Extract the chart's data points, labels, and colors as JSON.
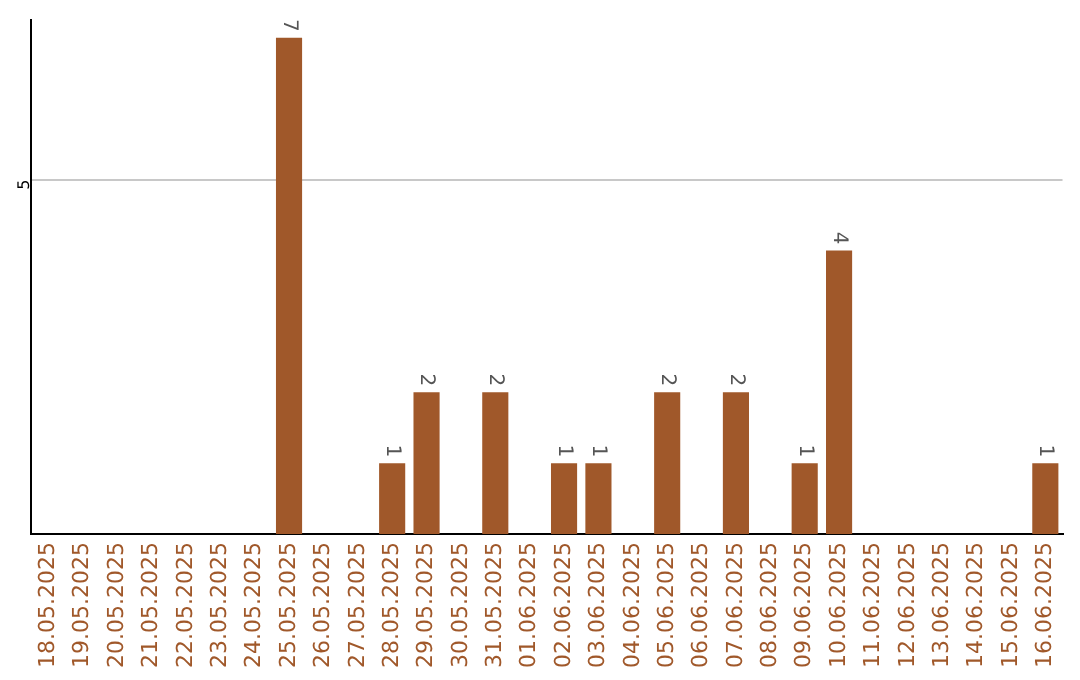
{
  "chart_data": {
    "type": "bar",
    "categories": [
      "18.05.2025",
      "19.05.2025",
      "20.05.2025",
      "21.05.2025",
      "22.05.2025",
      "23.05.2025",
      "24.05.2025",
      "25.05.2025",
      "26.05.2025",
      "27.05.2025",
      "28.05.2025",
      "29.05.2025",
      "30.05.2025",
      "31.05.2025",
      "01.06.2025",
      "02.06.2025",
      "03.06.2025",
      "04.06.2025",
      "05.06.2025",
      "06.06.2025",
      "07.06.2025",
      "08.06.2025",
      "09.06.2025",
      "10.06.2025",
      "11.06.2025",
      "12.06.2025",
      "13.06.2025",
      "14.06.2025",
      "15.06.2025",
      "16.06.2025"
    ],
    "values": [
      0,
      0,
      0,
      0,
      0,
      0,
      0,
      7,
      0,
      0,
      1,
      2,
      0,
      2,
      0,
      1,
      1,
      0,
      2,
      0,
      2,
      0,
      1,
      4,
      0,
      0,
      0,
      0,
      0,
      1
    ],
    "value_labels": [
      null,
      null,
      null,
      null,
      null,
      null,
      null,
      "7",
      null,
      null,
      "1",
      "2",
      null,
      "2",
      null,
      "1",
      "1",
      null,
      "2",
      null,
      "2",
      null,
      "1",
      "4",
      null,
      null,
      null,
      null,
      null,
      "1"
    ],
    "color": "#a0582a",
    "ylim": [
      0,
      7.25
    ],
    "yticks": [
      5
    ],
    "grid": "y",
    "legend": false
  }
}
